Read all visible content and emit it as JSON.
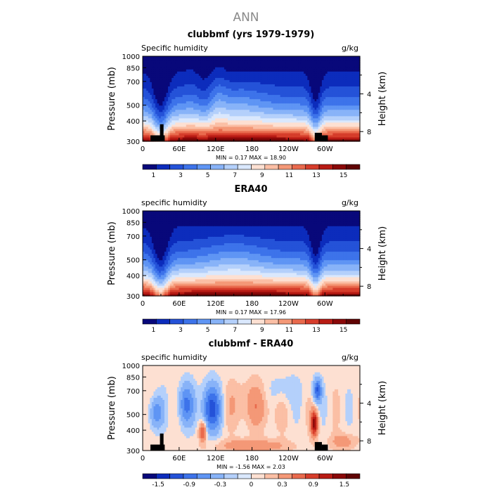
{
  "page_title": "ANN",
  "panels": [
    {
      "title": "clubbmf (yrs 1979-1979)",
      "left_label": "Specific humidity",
      "right_label": "g/kg",
      "ylabel_left": "Pressure (mb)",
      "ylabel_right": "Height (km)",
      "y_ticks": [
        "300",
        "400",
        "500",
        "700",
        "850",
        "1000"
      ],
      "height_ticks": [
        "8",
        "4"
      ],
      "x_ticks": [
        "0",
        "60E",
        "120E",
        "180",
        "120W",
        "60W"
      ],
      "stats": "MIN =    0.17   MAX =   18.90",
      "colorbar_labels": [
        "1",
        "3",
        "5",
        "7",
        "9",
        "11",
        "13",
        "15"
      ]
    },
    {
      "title": "ERA40",
      "left_label": "specific humidity",
      "right_label": "g/kg",
      "ylabel_left": "Pressure (mb)",
      "ylabel_right": "Height (km)",
      "y_ticks": [
        "300",
        "400",
        "500",
        "700",
        "850",
        "1000"
      ],
      "height_ticks": [
        "8",
        "4"
      ],
      "x_ticks": [
        "0",
        "60E",
        "120E",
        "180",
        "120W",
        "60W"
      ],
      "stats": "MIN =    0.17   MAX =   17.96",
      "colorbar_labels": [
        "1",
        "3",
        "5",
        "7",
        "9",
        "11",
        "13",
        "15"
      ]
    },
    {
      "title": "clubbmf - ERA40",
      "left_label": "specific humidity",
      "right_label": "g/kg",
      "ylabel_left": "Pressure (mb)",
      "ylabel_right": "Height (km)",
      "y_ticks": [
        "300",
        "400",
        "500",
        "700",
        "850",
        "1000"
      ],
      "height_ticks": [
        "8",
        "4"
      ],
      "x_ticks": [
        "0",
        "60E",
        "120E",
        "180",
        "120W",
        "60W"
      ],
      "stats": "MIN =   -1.56   MAX =    2.03",
      "colorbar_labels": [
        "-1.5",
        "-0.9",
        "-0.3",
        "0",
        "0.3",
        "0.9",
        "1.5"
      ]
    }
  ],
  "palette": [
    "#08087a",
    "#0c2cbc",
    "#2452d8",
    "#3d73ea",
    "#5f95f4",
    "#88b3f8",
    "#b4d0fb",
    "#dae8fd",
    "#fde0d2",
    "#fbbfa5",
    "#f49877",
    "#e96a4d",
    "#d63d2b",
    "#b81b14",
    "#8a0808",
    "#600404"
  ],
  "chart_data": [
    {
      "type": "heatmap",
      "title": "clubbmf (yrs 1979-1979)",
      "xlabel": "",
      "ylabel": "Pressure (mb)",
      "y_units": "mb",
      "units": "g/kg",
      "x_range_deg_east": [
        0,
        357.5
      ],
      "pressure_range_mb": [
        1000,
        300
      ],
      "height_range_km": [
        0,
        9
      ],
      "contour_levels": [
        1,
        2,
        3,
        4,
        5,
        6,
        7,
        8,
        9,
        10,
        11,
        12,
        13,
        14,
        15,
        16
      ],
      "min": 0.17,
      "max": 18.9
    },
    {
      "type": "heatmap",
      "title": "ERA40",
      "xlabel": "",
      "ylabel": "Pressure (mb)",
      "y_units": "mb",
      "units": "g/kg",
      "x_range_deg_east": [
        0,
        357.5
      ],
      "pressure_range_mb": [
        1000,
        300
      ],
      "height_range_km": [
        0,
        9
      ],
      "contour_levels": [
        1,
        2,
        3,
        4,
        5,
        6,
        7,
        8,
        9,
        10,
        11,
        12,
        13,
        14,
        15,
        16
      ],
      "min": 0.17,
      "max": 17.96
    },
    {
      "type": "heatmap",
      "title": "clubbmf - ERA40",
      "xlabel": "",
      "ylabel": "Pressure (mb)",
      "y_units": "mb",
      "units": "g/kg",
      "x_range_deg_east": [
        0,
        357.5
      ],
      "pressure_range_mb": [
        1000,
        300
      ],
      "height_range_km": [
        0,
        9
      ],
      "contour_levels": [
        -1.8,
        -1.5,
        -1.2,
        -0.9,
        -0.6,
        -0.3,
        -0.1,
        0,
        0.1,
        0.3,
        0.6,
        0.9,
        1.2,
        1.5,
        1.8
      ],
      "min": -1.56,
      "max": 2.03
    }
  ]
}
